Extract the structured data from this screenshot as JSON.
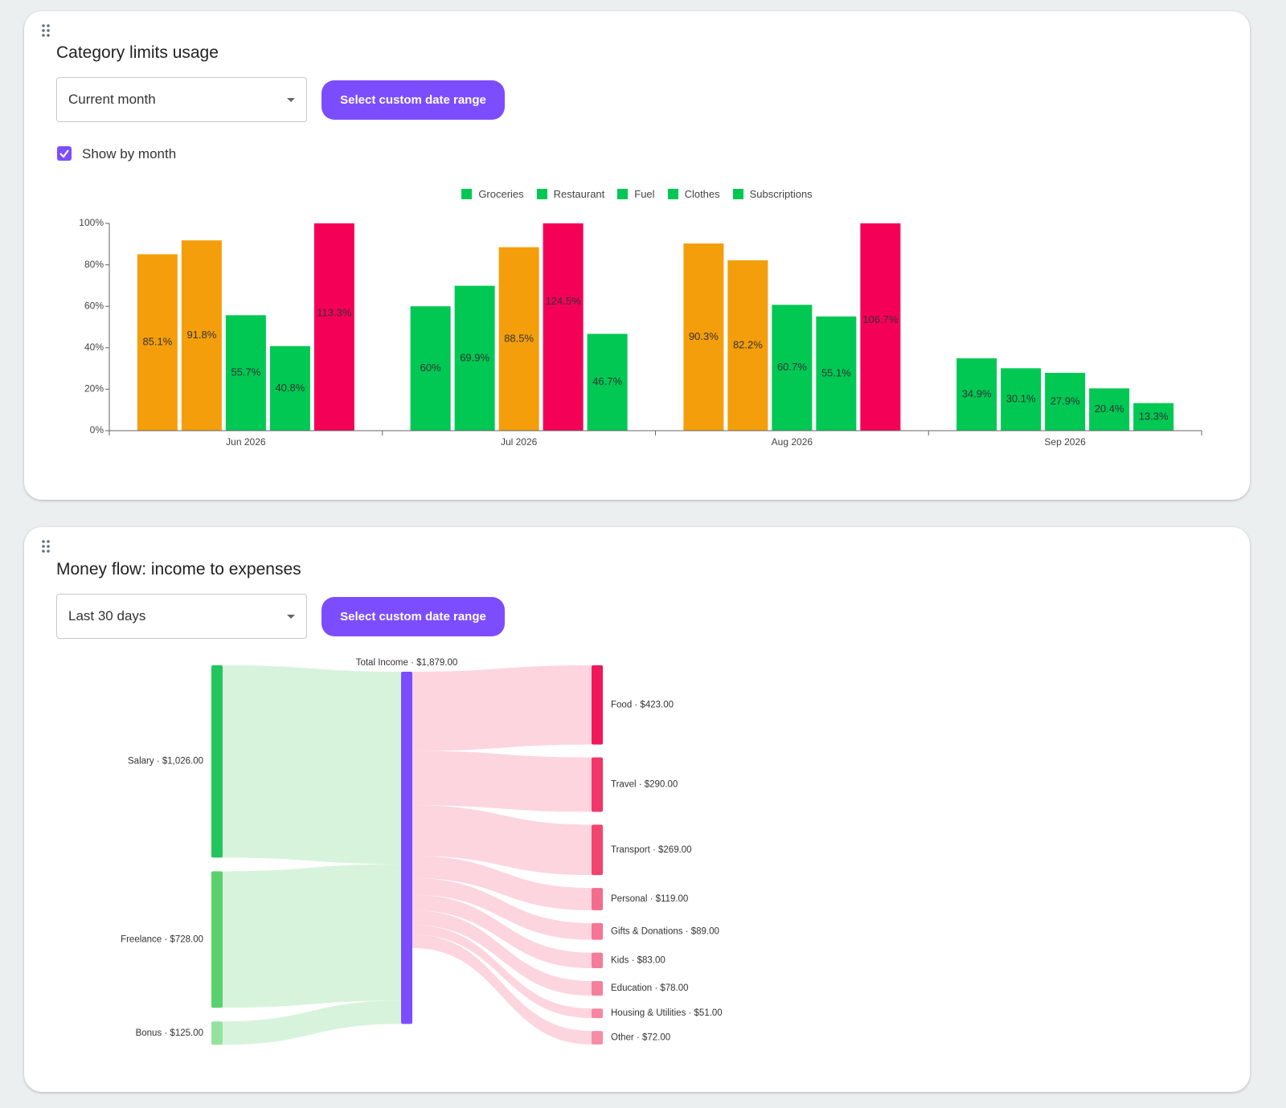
{
  "cards": [
    {
      "title": "Category limits usage",
      "dropdown": "Current month",
      "button": "Select custom date range",
      "checkbox": "Show by month",
      "checked": true
    },
    {
      "title": "Money flow: income to expenses",
      "dropdown": "Last 30 days",
      "button": "Select custom date range"
    }
  ],
  "chart_data": [
    {
      "type": "bar",
      "categories": [
        "Jun 2026",
        "Jul 2026",
        "Aug 2026",
        "Sep 2026"
      ],
      "series": [
        {
          "name": "Groceries",
          "color": "#00c853",
          "values": [
            85.1,
            60,
            90.3,
            34.9
          ],
          "value_labels": [
            "85.1%",
            "60%",
            "90.3%",
            "34.9%"
          ],
          "colors": [
            "#f59e0b",
            "#00c853",
            "#f59e0b",
            "#00c853"
          ]
        },
        {
          "name": "Restaurant",
          "color": "#00c853",
          "values": [
            91.8,
            69.9,
            82.2,
            30.1
          ],
          "value_labels": [
            "91.8%",
            "69.9%",
            "82.2%",
            "30.1%"
          ],
          "colors": [
            "#f59e0b",
            "#00c853",
            "#f59e0b",
            "#00c853"
          ]
        },
        {
          "name": "Fuel",
          "color": "#00c853",
          "values": [
            55.7,
            88.5,
            60.7,
            27.9
          ],
          "value_labels": [
            "55.7%",
            "88.5%",
            "60.7%",
            "27.9%"
          ],
          "colors": [
            "#00c853",
            "#f59e0b",
            "#00c853",
            "#00c853"
          ]
        },
        {
          "name": "Clothes",
          "color": "#00c853",
          "values": [
            40.8,
            124.5,
            55.1,
            20.4
          ],
          "value_labels": [
            "40.8%",
            "124.5%",
            "55.1%",
            "20.4%"
          ],
          "colors": [
            "#00c853",
            "#f50057",
            "#00c853",
            "#00c853"
          ]
        },
        {
          "name": "Subscriptions",
          "color": "#00c853",
          "values": [
            113.3,
            46.7,
            106.7,
            13.3
          ],
          "value_labels": [
            "113.3%",
            "46.7%",
            "106.7%",
            "13.3%"
          ],
          "colors": [
            "#f50057",
            "#00c853",
            "#f50057",
            "#00c853"
          ]
        }
      ],
      "ylim": [
        0,
        100
      ],
      "yticks": [
        {
          "value": 0,
          "label": "0%"
        },
        {
          "value": 20,
          "label": "20%"
        },
        {
          "value": 40,
          "label": "40%"
        },
        {
          "value": 60,
          "label": "60%"
        },
        {
          "value": 80,
          "label": "80%"
        },
        {
          "value": 100,
          "label": "100%"
        }
      ],
      "legend": "top"
    },
    {
      "type": "sankey",
      "sources": [
        {
          "label": "Salary · $1,026.00",
          "value": 1026,
          "color": "#22c55e"
        },
        {
          "label": "Freelance · $728.00",
          "value": 728,
          "color": "#5bd16e"
        },
        {
          "label": "Bonus · $125.00",
          "value": 125,
          "color": "#95e2a0"
        }
      ],
      "total": {
        "label": "Total Income · $1,879.00",
        "value": 1879,
        "color": "#7c4dff"
      },
      "targets": [
        {
          "label": "Food · $423.00",
          "value": 423,
          "color": "#f0185a"
        },
        {
          "label": "Travel · $290.00",
          "value": 290,
          "color": "#f0366a"
        },
        {
          "label": "Transport · $269.00",
          "value": 269,
          "color": "#f0456f"
        },
        {
          "label": "Personal · $119.00",
          "value": 119,
          "color": "#f36c8d"
        },
        {
          "label": "Gifts & Donations · $89.00",
          "value": 89,
          "color": "#f47595"
        },
        {
          "label": "Kids · $83.00",
          "value": 83,
          "color": "#f47b99"
        },
        {
          "label": "Education · $78.00",
          "value": 78,
          "color": "#f5809d"
        },
        {
          "label": "Housing & Utilities · $51.00",
          "value": 51,
          "color": "#f686a2"
        },
        {
          "label": "Other · $72.00",
          "value": 72,
          "color": "#f68ca6"
        }
      ],
      "link_colors": [
        "#d8f3dc",
        "#fdd5de"
      ]
    }
  ]
}
